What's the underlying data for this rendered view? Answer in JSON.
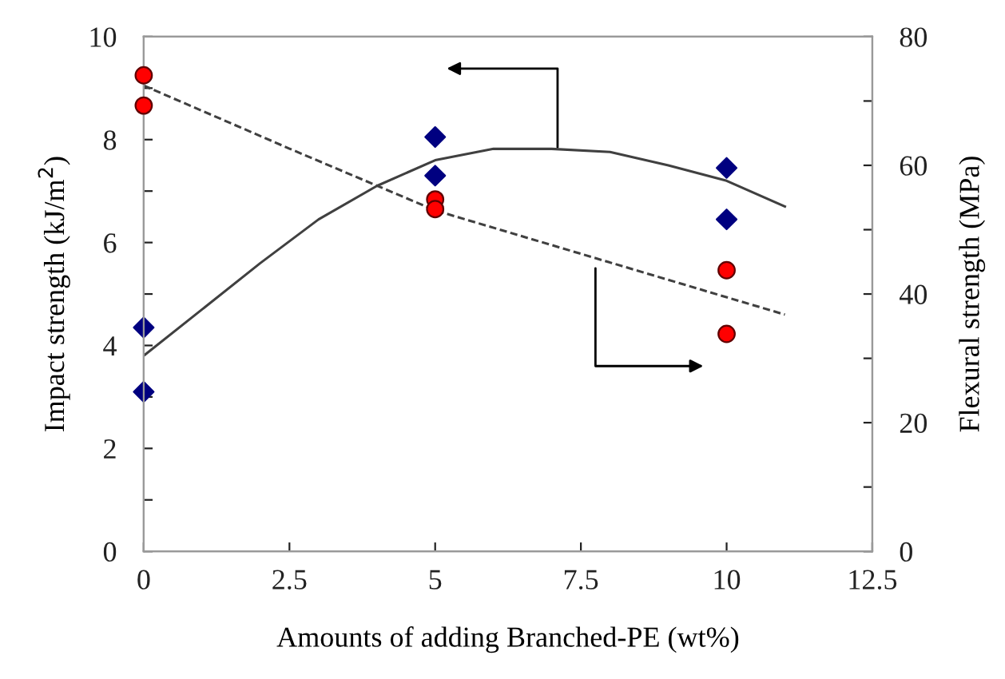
{
  "chart_data": {
    "type": "scatter",
    "xlabel": "Amounts of adding Branched-PE (wt%)",
    "ylabel": "Impact strength (kJ/m$^{2}$)",
    "y2label": "Flexural strength (MPa)",
    "xlim": [
      0,
      12.5
    ],
    "xticks": [
      0,
      2.5,
      5,
      7.5,
      10,
      12.5
    ],
    "ylim": [
      0,
      10
    ],
    "yticks": [
      0,
      {
        "value": 1,
        "label": null
      },
      2,
      {
        "value": 3,
        "label": null
      },
      4,
      {
        "value": 5,
        "label": null
      },
      6,
      {
        "value": 7,
        "label": null
      },
      8,
      {
        "value": 9,
        "label": null
      },
      10
    ],
    "y2lim": [
      0,
      80
    ],
    "y2ticks": [
      0,
      {
        "value": 10,
        "label": null
      },
      20,
      {
        "value": 30,
        "label": null
      },
      40,
      {
        "value": 50,
        "label": null
      },
      60,
      {
        "value": 70,
        "label": null
      },
      80
    ],
    "grid": false,
    "legend": false,
    "series": [
      {
        "marker": "diamond",
        "color": "#000080",
        "x": [
          0,
          0,
          5,
          5,
          10,
          10
        ],
        "values": [
          4.35,
          3.1,
          8.05,
          7.3,
          7.45,
          6.45
        ]
      },
      {
        "marker": "circle",
        "color": "#ff0000",
        "axis": "y2",
        "x": [
          0,
          0,
          5,
          5,
          10,
          10
        ],
        "values": [
          74,
          69.3,
          54.7,
          53.2,
          43.7,
          33.8
        ]
      },
      {
        "type": "line",
        "line_style": "solid",
        "color": "#404040",
        "x": [
          0,
          1,
          2,
          3,
          4,
          5,
          6,
          7,
          8,
          9,
          10,
          11
        ],
        "values": [
          3.8,
          4.7,
          5.6,
          6.45,
          7.1,
          7.6,
          7.82,
          7.82,
          7.76,
          7.5,
          7.2,
          6.7
        ]
      },
      {
        "type": "line",
        "line_style": "dashed",
        "color": "#404040",
        "axis": "y2",
        "x": [
          0,
          2.5,
          5,
          11
        ],
        "values": [
          72.4,
          62.6,
          53,
          36.8
        ]
      }
    ]
  }
}
